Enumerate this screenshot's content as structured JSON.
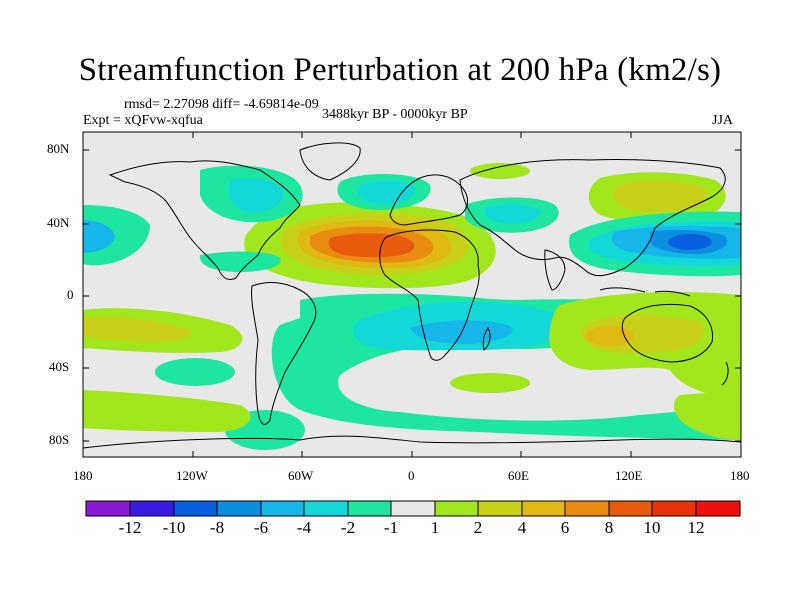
{
  "title": "Streamfunction Perturbation at 200 hPa (km2/s)",
  "stats": "rmsd= 2.27098 diff= -4.69814e-09",
  "experiment": "Expt = xQFvw-xqfua",
  "period": "3488kyr BP - 0000kyr BP",
  "season": "JJA",
  "lat_labels": [
    "80N",
    "40N",
    "0",
    "40S",
    "80S"
  ],
  "lon_labels": [
    "180",
    "120W",
    "60W",
    "0",
    "60E",
    "120E",
    "180"
  ],
  "colorbar": {
    "labels": [
      "-12",
      "-10",
      "-8",
      "-6",
      "-4",
      "-2",
      "-1",
      "1",
      "2",
      "4",
      "6",
      "8",
      "10",
      "12"
    ],
    "colors": [
      "#8b1ad8",
      "#3a1ae0",
      "#0a5ee0",
      "#0a8ee0",
      "#16b6e8",
      "#14d8d8",
      "#1ee6a0",
      "#e8e8e8",
      "#a4e61e",
      "#c8d01a",
      "#e0b814",
      "#e88c12",
      "#e85a0c",
      "#e8320a",
      "#f01010"
    ]
  },
  "map_data": {
    "variable": "Streamfunction Perturbation",
    "level": "200 hPa",
    "units": "km2/s",
    "lon_range": [
      -180,
      180
    ],
    "lat_range": [
      -90,
      90
    ]
  }
}
